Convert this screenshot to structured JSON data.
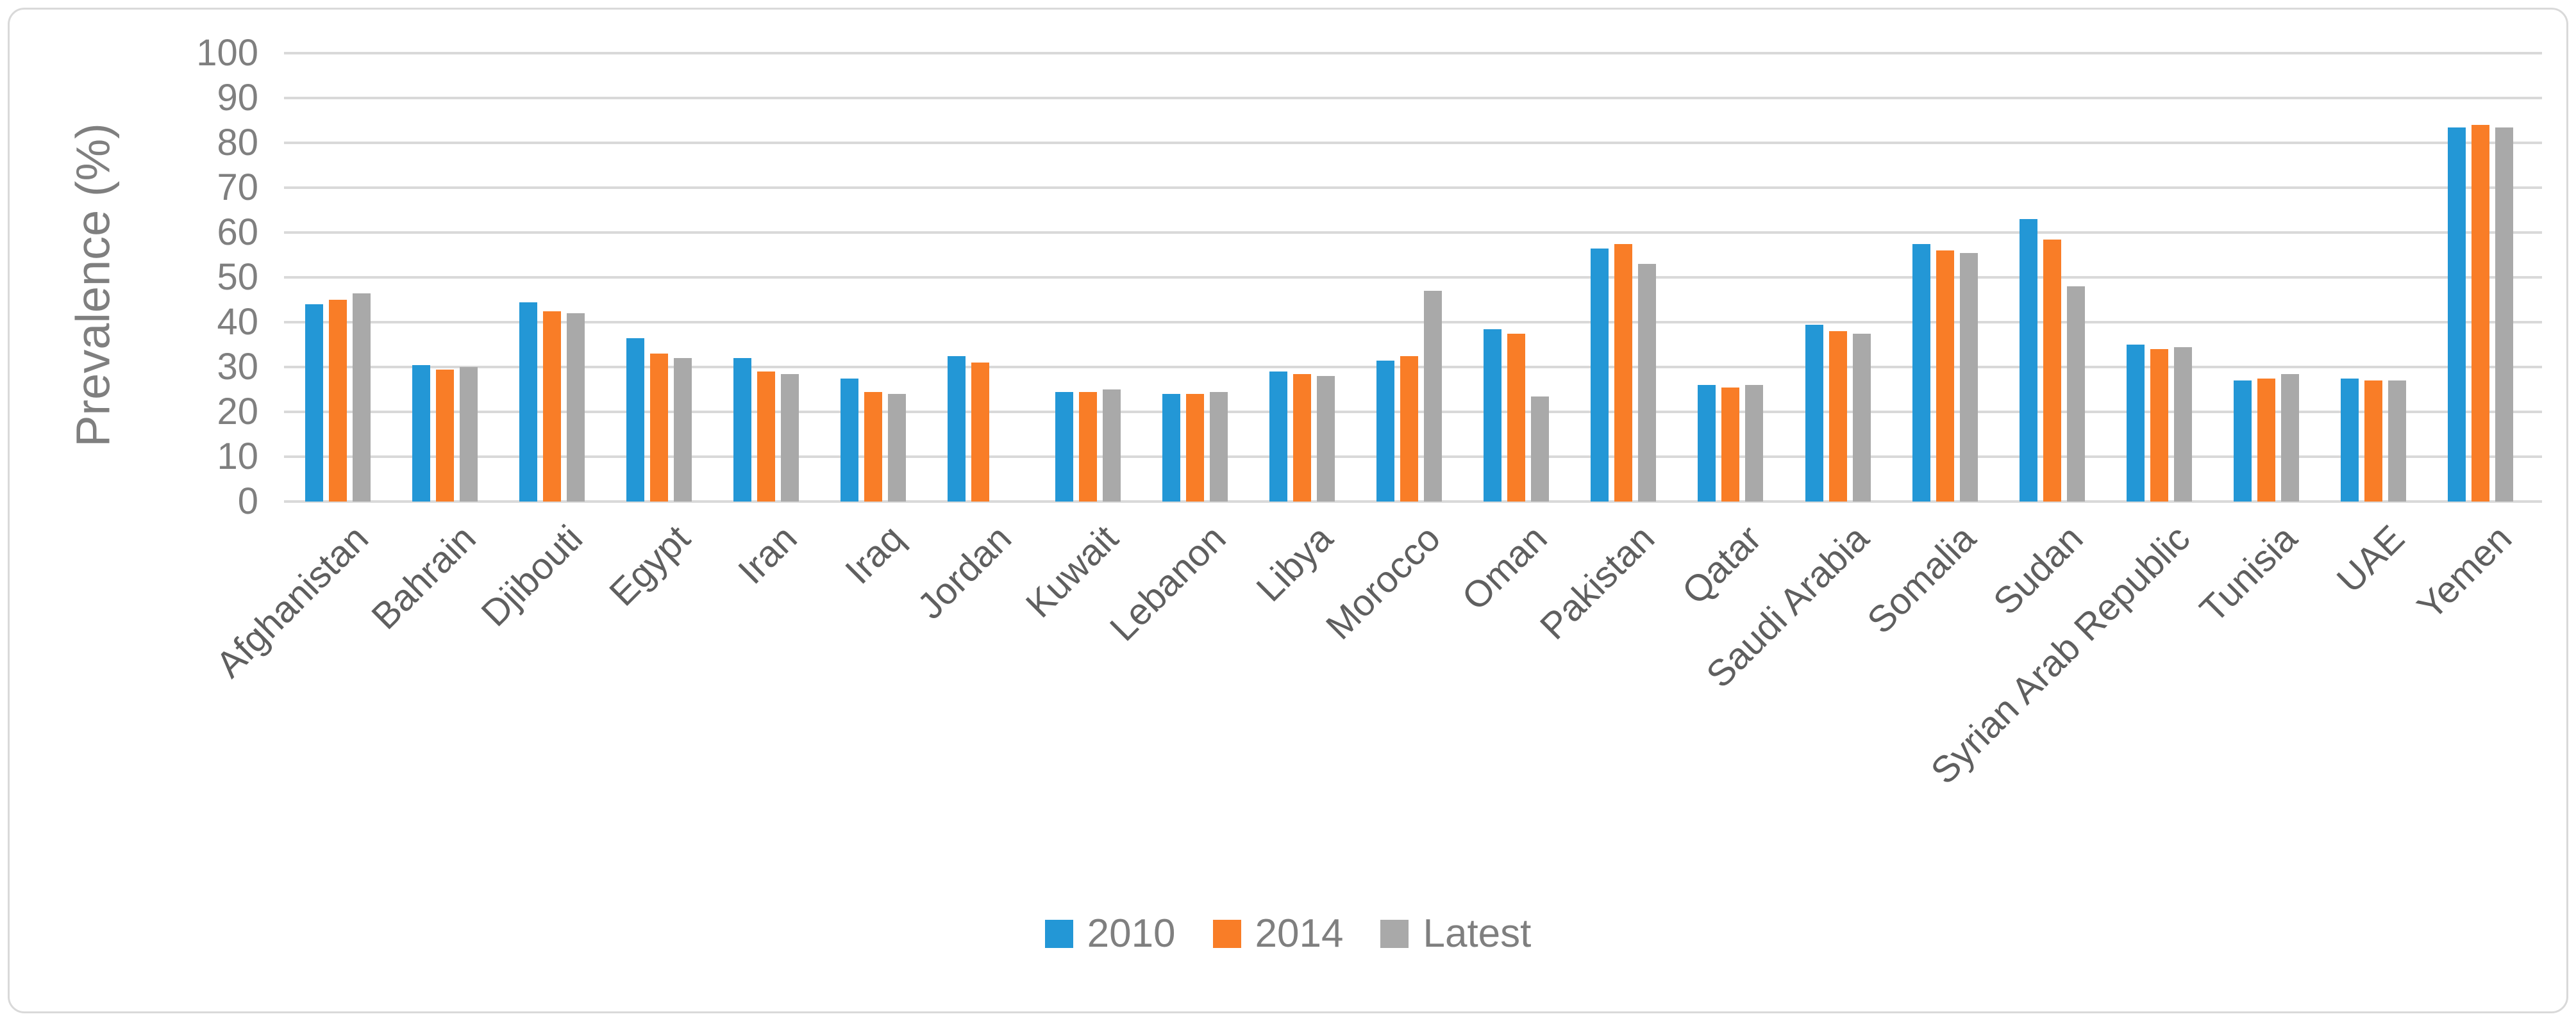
{
  "chart_data": {
    "type": "bar",
    "title": "",
    "xlabel": "",
    "ylabel": "Prevalence (%)",
    "ylim": [
      0,
      100
    ],
    "yticks": [
      0,
      10,
      20,
      30,
      40,
      50,
      60,
      70,
      80,
      90,
      100
    ],
    "grid": "horizontal",
    "legend_position": "bottom-center",
    "categories": [
      "Afghanistan",
      "Bahrain",
      "Djibouti",
      "Egypt",
      "Iran",
      "Iraq",
      "Jordan",
      "Kuwait",
      "Lebanon",
      "Libya",
      "Morocco",
      "Oman",
      "Pakistan",
      "Qatar",
      "Saudi Arabia",
      "Somalia",
      "Sudan",
      "Syrian Arab Republic",
      "Tunisia",
      "UAE",
      "Yemen"
    ],
    "series": [
      {
        "name": "2010",
        "color": "#2397D6",
        "values": [
          44,
          30.5,
          44.5,
          36.5,
          32,
          27.5,
          32.5,
          24.5,
          24,
          29,
          31.5,
          38.5,
          56.5,
          26,
          39.5,
          57.5,
          63,
          35,
          27,
          27.5,
          83.5
        ]
      },
      {
        "name": "2014",
        "color": "#F97D27",
        "values": [
          45,
          29.5,
          42.5,
          33,
          29,
          24.5,
          31,
          24.5,
          24,
          28.5,
          32.5,
          37.5,
          57.5,
          25.5,
          38,
          56,
          58.5,
          34,
          27.5,
          27,
          84
        ]
      },
      {
        "name": "Latest",
        "color": "#A9A9A9",
        "values": [
          46.5,
          30,
          42,
          32,
          28.5,
          24,
          null,
          25,
          24.5,
          28,
          47,
          23.5,
          53,
          26,
          37.5,
          55.5,
          48,
          34.5,
          28.5,
          27,
          83.5
        ]
      }
    ]
  },
  "colors": {
    "background": "#FFFFFF",
    "frame_border": "#D9D9D9",
    "gridline": "#D9D9D9",
    "tick_label": "#7F7F7F",
    "category_label": "#5F5F5F",
    "axis_title": "#7F7F7F",
    "legend_label": "#7F7F7F"
  }
}
